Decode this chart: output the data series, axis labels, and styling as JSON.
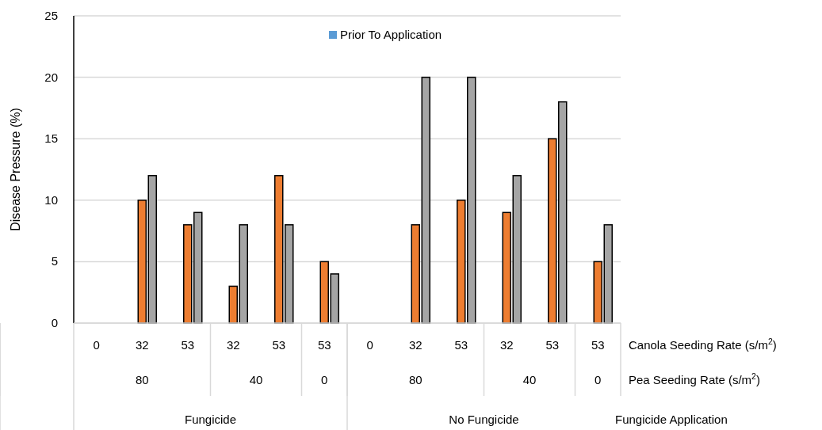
{
  "chart_data": {
    "type": "bar",
    "ylabel": "Disease Pressure (%)",
    "categories": [
      "0",
      "32",
      "53",
      "32",
      "53",
      "53",
      "0",
      "32",
      "53",
      "32",
      "53",
      "53"
    ],
    "series": [
      {
        "name": "Prior To Application",
        "color": "#5b9bd5",
        "values": [
          null,
          0,
          0,
          0,
          0,
          0,
          null,
          0,
          0,
          0,
          0,
          0
        ]
      },
      {
        "color": "#ed7d31",
        "values": [
          null,
          10,
          8,
          3,
          12,
          5,
          null,
          8,
          10,
          9,
          15,
          5
        ]
      },
      {
        "color": "#a5a5a5",
        "values": [
          null,
          12,
          9,
          8,
          8,
          4,
          null,
          20,
          20,
          12,
          18,
          8
        ]
      }
    ],
    "ylim": [
      0,
      25
    ],
    "yticks": [
      0,
      5,
      10,
      15,
      20,
      25
    ],
    "grid": "y",
    "legend": "top",
    "annotations": [
      "80",
      "40",
      "0",
      "80",
      "40",
      "0",
      "Fungicide",
      "No Fungicide",
      "Canola Seeding Rate (s/m$^{2}$)",
      "Pea Seeding Rate (s/m$^{2}$)",
      "Fungicide Application"
    ]
  }
}
